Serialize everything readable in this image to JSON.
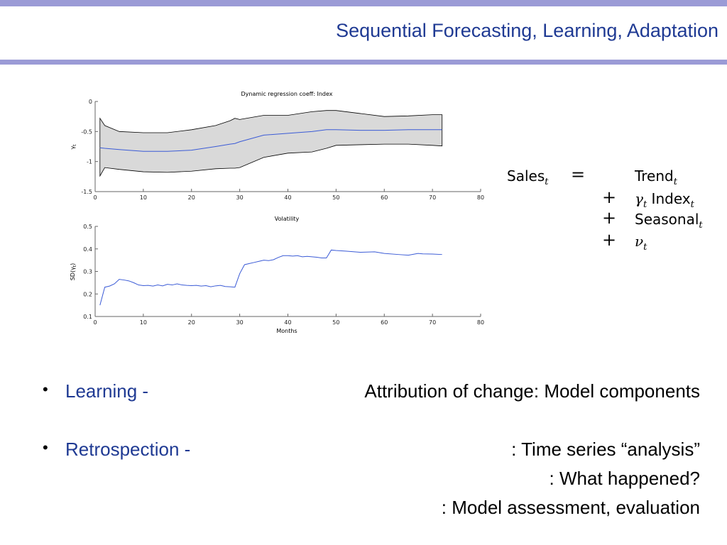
{
  "slide": {
    "title": "Sequential Forecasting, Learning, Adaptation",
    "accent_color": "#9b9bd6",
    "title_color": "#1f3a93"
  },
  "equation": {
    "lhs": "Sales",
    "lhs_sub": "t",
    "eq": "=",
    "terms": [
      {
        "op": "",
        "coef": "",
        "name": "Trend",
        "sub": "t"
      },
      {
        "op": "+",
        "coef": "γ",
        "coef_sub": "t",
        "name": "Index",
        "sub": "t"
      },
      {
        "op": "+",
        "coef": "",
        "name": "Seasonal",
        "sub": "t"
      },
      {
        "op": "+",
        "coef": "ν",
        "coef_sub": "t",
        "name": "",
        "sub": ""
      }
    ]
  },
  "bullets": [
    {
      "label": "Learning -",
      "lines": [
        "Attribution of change: Model components"
      ]
    },
    {
      "label": "Retrospection -",
      "lines": [
        ": Time series “analysis”",
        ":  What happened?",
        ": Model assessment, evaluation"
      ]
    }
  ],
  "chart_data": [
    {
      "type": "area",
      "title": "Dynamic regression coeff: Index",
      "xlabel": "",
      "ylabel": "γt",
      "xlim": [
        0,
        80
      ],
      "ylim": [
        -1.5,
        0
      ],
      "xticks": [
        0,
        10,
        20,
        30,
        40,
        50,
        60,
        70,
        80
      ],
      "yticks": [
        0,
        -0.5,
        -1,
        -1.5
      ],
      "ytick_labels": [
        "0",
        "-0.5",
        "-1",
        "-1.5"
      ],
      "band_color": "#d9d9d9",
      "line_color": "#3b5bd6",
      "series": [
        {
          "x": [
            1,
            2,
            5,
            10,
            15,
            20,
            25,
            28,
            29,
            30,
            35,
            40,
            45,
            48,
            50,
            55,
            60,
            65,
            70,
            72
          ],
          "mean": [
            -0.77,
            -0.78,
            -0.8,
            -0.83,
            -0.83,
            -0.81,
            -0.75,
            -0.71,
            -0.7,
            -0.67,
            -0.56,
            -0.53,
            -0.5,
            -0.47,
            -0.47,
            -0.48,
            -0.48,
            -0.47,
            -0.47,
            -0.47
          ],
          "upper": [
            -0.28,
            -0.4,
            -0.5,
            -0.52,
            -0.52,
            -0.47,
            -0.4,
            -0.32,
            -0.28,
            -0.3,
            -0.23,
            -0.23,
            -0.17,
            -0.15,
            -0.15,
            -0.2,
            -0.25,
            -0.24,
            -0.22,
            -0.22
          ],
          "lower": [
            -1.24,
            -1.1,
            -1.13,
            -1.17,
            -1.18,
            -1.16,
            -1.12,
            -1.11,
            -1.11,
            -1.1,
            -0.93,
            -0.86,
            -0.84,
            -0.78,
            -0.73,
            -0.72,
            -0.71,
            -0.71,
            -0.73,
            -0.74
          ]
        }
      ]
    },
    {
      "type": "line",
      "title": "Volatility",
      "xlabel": "Months",
      "ylabel": "SD(γt)",
      "xlim": [
        0,
        80
      ],
      "ylim": [
        0.1,
        0.5
      ],
      "xticks": [
        0,
        10,
        20,
        30,
        40,
        50,
        60,
        70,
        80
      ],
      "yticks": [
        0.1,
        0.2,
        0.3,
        0.4,
        0.5
      ],
      "ytick_labels": [
        "0.1",
        "0.2",
        "0.3",
        "0.4",
        "0.5"
      ],
      "line_color": "#3b5bd6",
      "series": [
        {
          "x": [
            1,
            2,
            3,
            4,
            5,
            6,
            7,
            8,
            9,
            10,
            11,
            12,
            13,
            14,
            15,
            16,
            17,
            18,
            19,
            20,
            21,
            22,
            23,
            24,
            25,
            26,
            27,
            28,
            29,
            30,
            31,
            32,
            33,
            34,
            35,
            36,
            37,
            38,
            39,
            40,
            41,
            42,
            43,
            44,
            45,
            46,
            47,
            48,
            49,
            50,
            52,
            55,
            58,
            60,
            63,
            65,
            67,
            68,
            70,
            72
          ],
          "values": [
            0.15,
            0.23,
            0.235,
            0.245,
            0.265,
            0.262,
            0.258,
            0.25,
            0.24,
            0.237,
            0.238,
            0.235,
            0.24,
            0.236,
            0.243,
            0.24,
            0.245,
            0.24,
            0.238,
            0.237,
            0.238,
            0.235,
            0.237,
            0.232,
            0.236,
            0.238,
            0.233,
            0.232,
            0.23,
            0.29,
            0.33,
            0.335,
            0.34,
            0.345,
            0.35,
            0.348,
            0.352,
            0.362,
            0.37,
            0.37,
            0.368,
            0.37,
            0.365,
            0.367,
            0.365,
            0.363,
            0.36,
            0.36,
            0.395,
            0.393,
            0.39,
            0.385,
            0.387,
            0.38,
            0.375,
            0.372,
            0.38,
            0.378,
            0.377,
            0.375
          ]
        }
      ]
    }
  ]
}
